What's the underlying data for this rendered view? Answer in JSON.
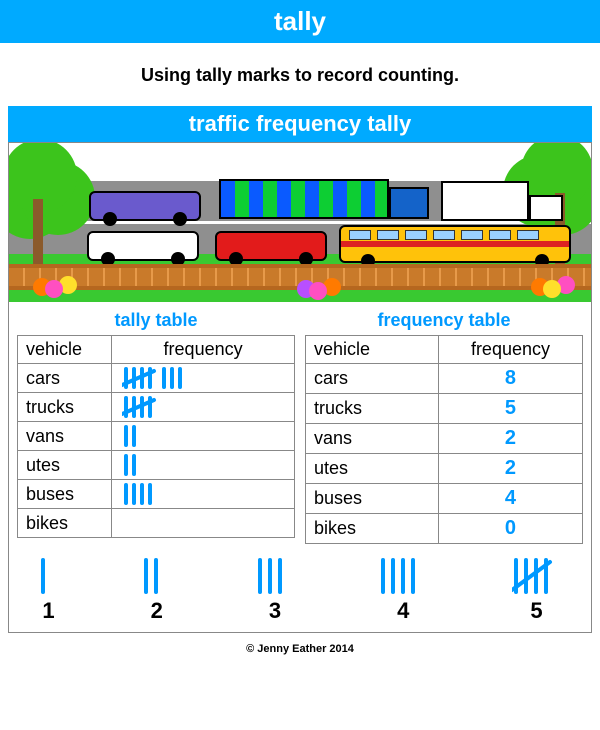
{
  "colors": {
    "bar_bg": "#00aaff",
    "bar_text": "#ffffff",
    "tally_stroke": "#0099ff",
    "freq_text": "#0099ff",
    "grid_color": "#888888",
    "grass": "#39c931",
    "road": "#8f8f8f"
  },
  "title": "tally",
  "definition": "Using tally marks to record counting.",
  "subtitle": "traffic frequency tally",
  "tally_table": {
    "label": "tally table",
    "col_vehicle": "vehicle",
    "col_freq": "frequency",
    "rows": [
      {
        "vehicle": "cars",
        "count": 8
      },
      {
        "vehicle": "trucks",
        "count": 5
      },
      {
        "vehicle": "vans",
        "count": 2
      },
      {
        "vehicle": "utes",
        "count": 2
      },
      {
        "vehicle": "buses",
        "count": 4
      },
      {
        "vehicle": "bikes",
        "count": 0
      }
    ]
  },
  "freq_table": {
    "label": "frequency table",
    "col_vehicle": "vehicle",
    "col_freq": "frequency",
    "rows": [
      {
        "vehicle": "cars",
        "count": "8"
      },
      {
        "vehicle": "trucks",
        "count": "5"
      },
      {
        "vehicle": "vans",
        "count": "2"
      },
      {
        "vehicle": "utes",
        "count": "2"
      },
      {
        "vehicle": "buses",
        "count": "4"
      },
      {
        "vehicle": "bikes",
        "count": "0"
      }
    ]
  },
  "legend": {
    "items": [
      {
        "count": 1,
        "label": "1"
      },
      {
        "count": 2,
        "label": "2"
      },
      {
        "count": 3,
        "label": "3"
      },
      {
        "count": 4,
        "label": "4"
      },
      {
        "count": 5,
        "label": "5"
      }
    ],
    "stroke_width": 4,
    "mark_height": 36,
    "mark_spacing": 10
  },
  "tally_style": {
    "stroke_width": 4,
    "mark_height": 22,
    "mark_spacing": 8,
    "group_gap": 14
  },
  "copyright": "© Jenny Eather 2014"
}
